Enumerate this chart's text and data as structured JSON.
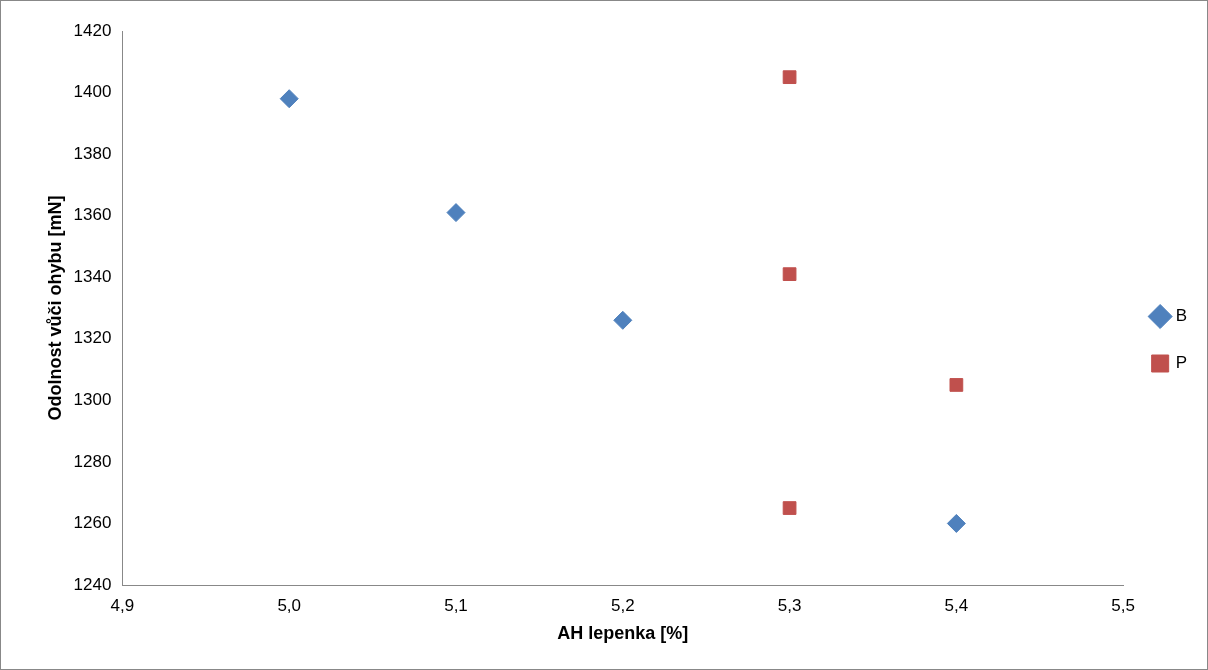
{
  "chart_data": {
    "type": "scatter",
    "xlabel": "AH lepenka [%]",
    "ylabel": "Odolnost vůči ohybu [mN]",
    "xlim": [
      4.9,
      5.5
    ],
    "xticks": [
      {
        "value": 4.9,
        "label": "4,9"
      },
      {
        "value": 5.0,
        "label": "5,0"
      },
      {
        "value": 5.1,
        "label": "5,1"
      },
      {
        "value": 5.2,
        "label": "5,2"
      },
      {
        "value": 5.3,
        "label": "5,3"
      },
      {
        "value": 5.4,
        "label": "5,4"
      },
      {
        "value": 5.5,
        "label": "5,5"
      }
    ],
    "ylim": [
      1240,
      1420
    ],
    "yticks": [
      1240,
      1260,
      1280,
      1300,
      1320,
      1340,
      1360,
      1380,
      1400,
      1420
    ],
    "grid": false,
    "legend": "right",
    "series": [
      {
        "name": "B",
        "color": "#4f81bd",
        "marker": "diamond",
        "x": [
          5.0,
          5.1,
          5.2,
          5.4
        ],
        "values": [
          1398,
          1361,
          1326,
          1260
        ]
      },
      {
        "name": "P",
        "color": "#c0504d",
        "marker": "square",
        "x": [
          5.3,
          5.3,
          5.4,
          5.3
        ],
        "values": [
          1405,
          1341,
          1305,
          1265
        ]
      }
    ]
  }
}
